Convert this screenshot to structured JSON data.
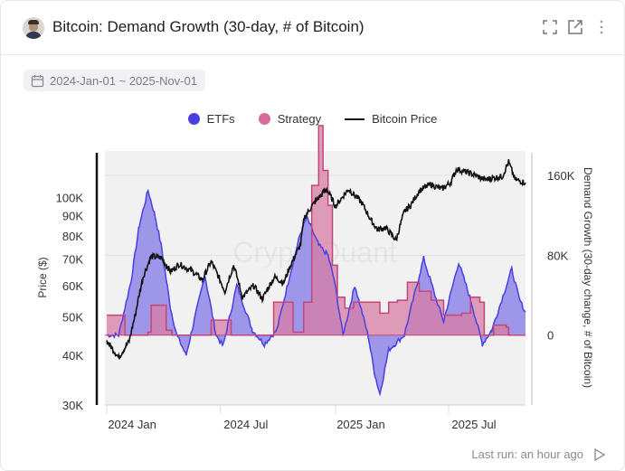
{
  "header": {
    "title": "Bitcoin: Demand Growth (30-day, # of Bitcoin)",
    "icons": [
      "avatar",
      "expand-icon",
      "external-link-icon",
      "more-vertical-icon"
    ]
  },
  "date_range": {
    "icon": "calendar-icon",
    "label": "2024-Jan-01 ~ 2025-Nov-01"
  },
  "footer": {
    "last_run": "Last run: an hour ago",
    "run_icon": "play-icon"
  },
  "watermark": "CryptoQuant",
  "chart_data": {
    "type": "area+line",
    "legend_position": "top-center",
    "grid": true,
    "x_range": [
      "2024-01-01",
      "2025-11-01"
    ],
    "x_ticks": [
      {
        "date": "2024-01-01",
        "label": "2024 Jan"
      },
      {
        "date": "2024-07-01",
        "label": "2024 Jul"
      },
      {
        "date": "2025-01-01",
        "label": "2025 Jan"
      },
      {
        "date": "2025-07-01",
        "label": "2025 Jul"
      }
    ],
    "left_axis": {
      "label": "Price ($)",
      "scale": "log",
      "range": [
        30000,
        131000
      ],
      "ticks": [
        {
          "v": 100000,
          "label": "100K"
        },
        {
          "v": 90000,
          "label": "90K"
        },
        {
          "v": 80000,
          "label": "80K"
        },
        {
          "v": 70000,
          "label": "70K"
        },
        {
          "v": 60000,
          "label": "60K"
        },
        {
          "v": 50000,
          "label": "50K"
        },
        {
          "v": 40000,
          "label": "40K"
        },
        {
          "v": 30000,
          "label": "30K"
        }
      ]
    },
    "right_axis": {
      "label": "Demand Growth (30-day change, # of Bitcoin)",
      "scale": "linear",
      "range": [
        -70000,
        184500
      ],
      "ticks": [
        {
          "v": 160000,
          "label": "160K"
        },
        {
          "v": 80000,
          "label": "80K"
        },
        {
          "v": 0,
          "label": "0"
        }
      ]
    },
    "series": [
      {
        "name": "ETFs",
        "type": "area",
        "axis": "right",
        "color": "#4a3fe0",
        "fill": "#8f86e8",
        "points": [
          [
            "2024-01-01",
            0
          ],
          [
            "2024-01-20",
            0
          ],
          [
            "2024-02-09",
            55000
          ],
          [
            "2024-02-22",
            110000
          ],
          [
            "2024-03-07",
            145000
          ],
          [
            "2024-03-18",
            120000
          ],
          [
            "2024-03-28",
            90000
          ],
          [
            "2024-04-12",
            27000
          ],
          [
            "2024-04-22",
            0
          ],
          [
            "2024-05-07",
            -20000
          ],
          [
            "2024-05-20",
            15000
          ],
          [
            "2024-06-06",
            60000
          ],
          [
            "2024-06-24",
            0
          ],
          [
            "2024-07-05",
            -11000
          ],
          [
            "2024-07-27",
            50000
          ],
          [
            "2024-08-21",
            5000
          ],
          [
            "2024-09-09",
            -9000
          ],
          [
            "2024-09-29",
            5000
          ],
          [
            "2024-10-18",
            55000
          ],
          [
            "2024-11-05",
            100000
          ],
          [
            "2024-11-16",
            118000
          ],
          [
            "2024-12-05",
            90000
          ],
          [
            "2024-12-20",
            80000
          ],
          [
            "2024-12-30",
            55000
          ],
          [
            "2025-01-13",
            0
          ],
          [
            "2025-02-01",
            50000
          ],
          [
            "2025-02-22",
            0
          ],
          [
            "2025-03-05",
            -40000
          ],
          [
            "2025-03-13",
            -59000
          ],
          [
            "2025-03-27",
            -15000
          ],
          [
            "2025-04-21",
            0
          ],
          [
            "2025-05-22",
            77000
          ],
          [
            "2025-06-13",
            32000
          ],
          [
            "2025-06-23",
            14000
          ],
          [
            "2025-07-17",
            73000
          ],
          [
            "2025-08-05",
            36000
          ],
          [
            "2025-08-24",
            -9000
          ],
          [
            "2025-09-08",
            5000
          ],
          [
            "2025-10-10",
            66000
          ],
          [
            "2025-10-22",
            36000
          ],
          [
            "2025-11-01",
            23000
          ]
        ]
      },
      {
        "name": "Strategy",
        "type": "step-area",
        "axis": "right",
        "color": "#c4457a",
        "fill": "#d77ea3",
        "points": [
          [
            "2024-01-01",
            20000
          ],
          [
            "2024-01-30",
            0
          ],
          [
            "2024-03-07",
            3000
          ],
          [
            "2024-03-12",
            30000
          ],
          [
            "2024-04-05",
            5000
          ],
          [
            "2024-04-14",
            0
          ],
          [
            "2024-06-16",
            15000
          ],
          [
            "2024-07-18",
            0
          ],
          [
            "2024-09-24",
            33000
          ],
          [
            "2024-10-25",
            3000
          ],
          [
            "2024-11-11",
            33000
          ],
          [
            "2024-11-24",
            150000
          ],
          [
            "2024-12-05",
            210000
          ],
          [
            "2024-12-12",
            165000
          ],
          [
            "2024-12-20",
            130000
          ],
          [
            "2024-12-27",
            70000
          ],
          [
            "2025-01-04",
            38000
          ],
          [
            "2025-01-16",
            27000
          ],
          [
            "2025-01-30",
            33000
          ],
          [
            "2025-03-13",
            22000
          ],
          [
            "2025-03-27",
            33000
          ],
          [
            "2025-04-10",
            35000
          ],
          [
            "2025-04-26",
            53000
          ],
          [
            "2025-05-15",
            44000
          ],
          [
            "2025-06-03",
            35000
          ],
          [
            "2025-06-23",
            20000
          ],
          [
            "2025-07-22",
            22000
          ],
          [
            "2025-08-05",
            38000
          ],
          [
            "2025-08-20",
            33000
          ],
          [
            "2025-08-27",
            0
          ],
          [
            "2025-09-11",
            10000
          ],
          [
            "2025-10-01",
            8000
          ],
          [
            "2025-10-05",
            0
          ],
          [
            "2025-11-01",
            0
          ]
        ]
      },
      {
        "name": "Bitcoin Price",
        "type": "line",
        "axis": "left",
        "color": "#111111",
        "points": [
          [
            "2024-01-01",
            43500
          ],
          [
            "2024-01-20",
            39500
          ],
          [
            "2024-02-06",
            43500
          ],
          [
            "2024-02-16",
            51000
          ],
          [
            "2024-02-28",
            63000
          ],
          [
            "2024-03-12",
            71000
          ],
          [
            "2024-03-28",
            70500
          ],
          [
            "2024-04-12",
            65000
          ],
          [
            "2024-04-26",
            68000
          ],
          [
            "2024-05-18",
            65000
          ],
          [
            "2024-06-02",
            62000
          ],
          [
            "2024-06-16",
            69000
          ],
          [
            "2024-07-08",
            58000
          ],
          [
            "2024-07-22",
            67500
          ],
          [
            "2024-08-05",
            56000
          ],
          [
            "2024-08-23",
            60000
          ],
          [
            "2024-09-06",
            55500
          ],
          [
            "2024-09-25",
            63000
          ],
          [
            "2024-10-10",
            61000
          ],
          [
            "2024-10-22",
            68000
          ],
          [
            "2024-11-06",
            76000
          ],
          [
            "2024-11-12",
            89000
          ],
          [
            "2024-11-28",
            97000
          ],
          [
            "2024-12-18",
            105000
          ],
          [
            "2025-01-01",
            95000
          ],
          [
            "2025-01-22",
            105000
          ],
          [
            "2025-02-12",
            97000
          ],
          [
            "2025-02-26",
            88000
          ],
          [
            "2025-03-09",
            83000
          ],
          [
            "2025-03-22",
            84000
          ],
          [
            "2025-04-08",
            78000
          ],
          [
            "2025-04-21",
            92000
          ],
          [
            "2025-05-02",
            96000
          ],
          [
            "2025-05-15",
            104000
          ],
          [
            "2025-06-02",
            108000
          ],
          [
            "2025-06-20",
            105000
          ],
          [
            "2025-07-04",
            109000
          ],
          [
            "2025-07-14",
            118000
          ],
          [
            "2025-08-05",
            115000
          ],
          [
            "2025-08-27",
            111000
          ],
          [
            "2025-09-25",
            113000
          ],
          [
            "2025-10-05",
            123000
          ],
          [
            "2025-10-15",
            111000
          ],
          [
            "2025-11-01",
            109000
          ]
        ]
      }
    ]
  }
}
